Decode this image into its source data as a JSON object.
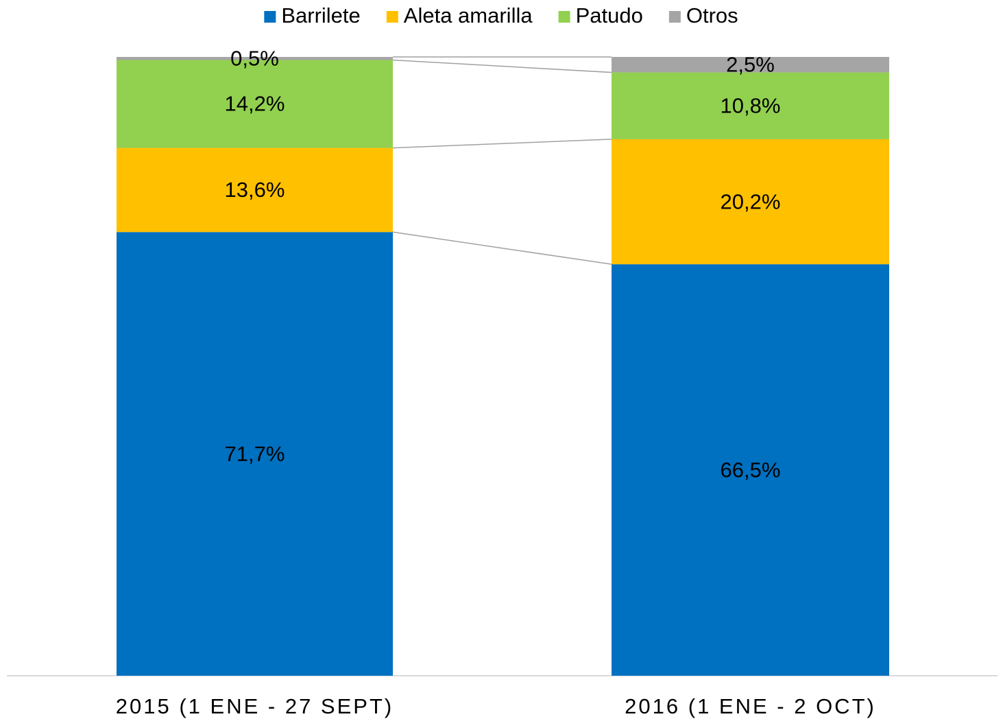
{
  "chart_data": {
    "type": "stacked_bar_100",
    "categories": [
      "2015 (1 ENE - 27 SEPT)",
      "2016 (1 ENE - 2 OCT)"
    ],
    "series": [
      {
        "name": "Barrilete",
        "color": "#0070c0",
        "values": [
          71.7,
          66.5
        ],
        "value_labels": [
          "71,7%",
          "66,5%"
        ]
      },
      {
        "name": "Aleta amarilla",
        "color": "#ffc000",
        "values": [
          13.6,
          20.2
        ],
        "value_labels": [
          "13,6%",
          "20,2%"
        ]
      },
      {
        "name": "Patudo",
        "color": "#92d050",
        "values": [
          14.2,
          10.8
        ],
        "value_labels": [
          "14,2%",
          "10,8%"
        ]
      },
      {
        "name": "Otros",
        "color": "#a5a5a5",
        "values": [
          0.5,
          2.5
        ],
        "value_labels": [
          "0,5%",
          "2,5%"
        ]
      }
    ],
    "ylim": [
      0,
      100
    ],
    "legend": "top",
    "series_lines": true
  }
}
